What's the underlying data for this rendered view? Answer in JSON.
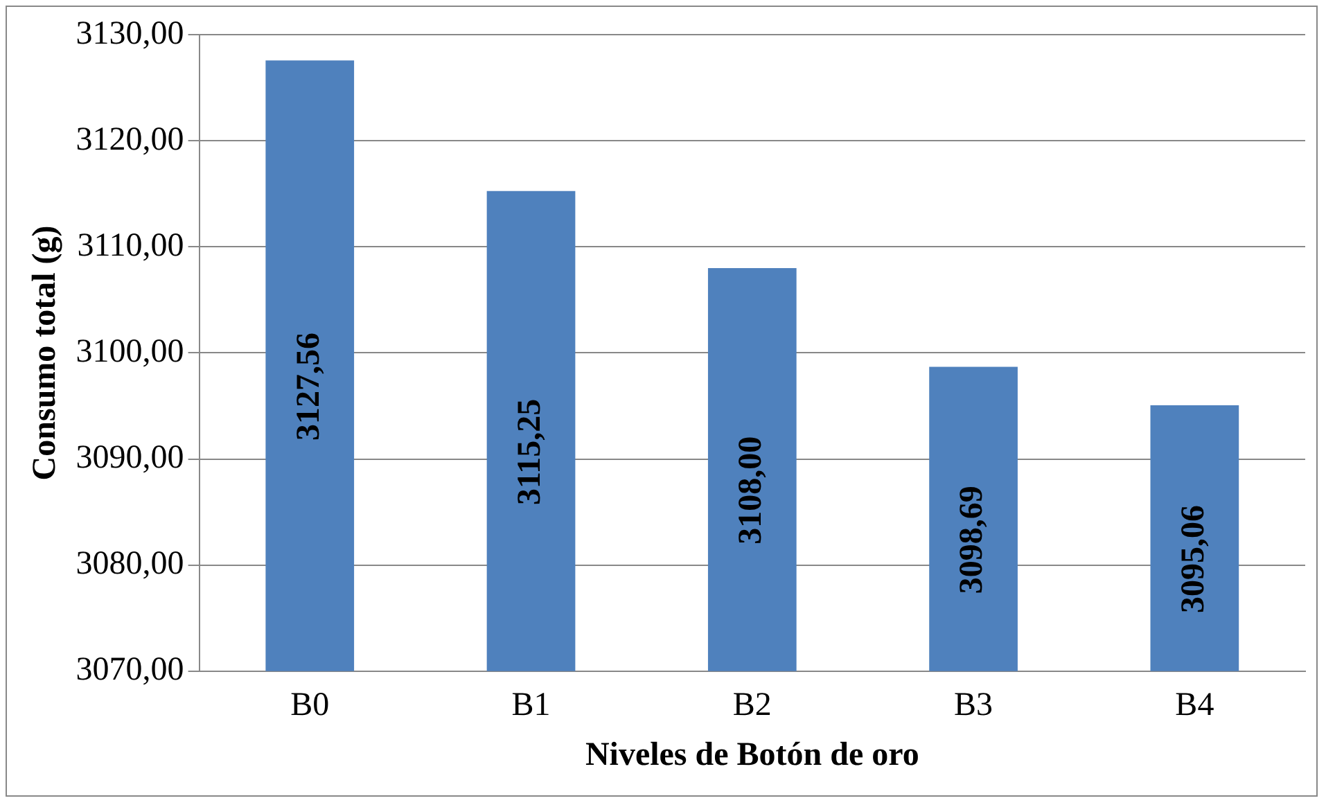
{
  "chart_data": {
    "type": "bar",
    "xlabel": "Niveles de Botón de oro",
    "ylabel": "Consumo total (g)",
    "categories": [
      "B0",
      "B1",
      "B2",
      "B3",
      "B4"
    ],
    "values": [
      3127.56,
      3115.25,
      3108.0,
      3098.69,
      3095.06
    ],
    "value_labels": [
      "3127,56",
      "3115,25",
      "3108,00",
      "3098,69",
      "3095,06"
    ],
    "color": "#4f81bd",
    "ylim": [
      3070,
      3130
    ],
    "yticks": [
      {
        "value": 3070,
        "label": "3070,00"
      },
      {
        "value": 3080,
        "label": "3080,00"
      },
      {
        "value": 3090,
        "label": "3090,00"
      },
      {
        "value": 3100,
        "label": "3100,00"
      },
      {
        "value": 3110,
        "label": "3110,00"
      },
      {
        "value": 3120,
        "label": "3120,00"
      },
      {
        "value": 3130,
        "label": "3130,00"
      }
    ],
    "grid": "y",
    "legend": false
  }
}
